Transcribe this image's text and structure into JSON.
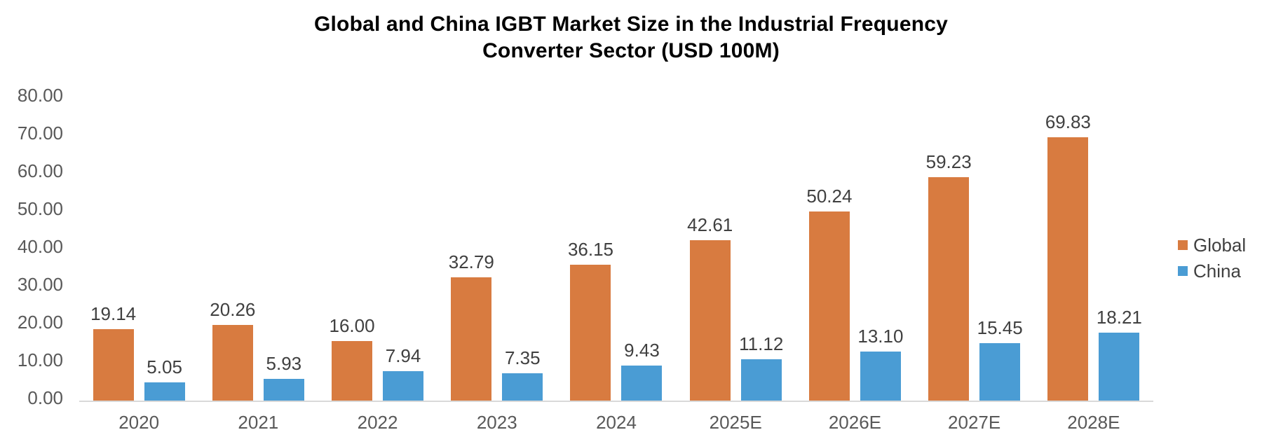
{
  "title": {
    "line1": "Global and China IGBT Market Size in the Industrial Frequency",
    "line2": "Converter Sector（USD 100M）"
  },
  "chart_data": {
    "type": "bar",
    "title": "Global and China IGBT Market Size in the Industrial Frequency Converter Sector（USD 100M）",
    "categories": [
      "2020",
      "2021",
      "2022",
      "2023",
      "2024",
      "2025E",
      "2026E",
      "2027E",
      "2028E"
    ],
    "series": [
      {
        "name": "Global",
        "color": "#d87b40",
        "values": [
          19.14,
          20.26,
          16.0,
          32.79,
          36.15,
          42.61,
          50.24,
          59.23,
          69.83
        ]
      },
      {
        "name": "China",
        "color": "#4a9cd4",
        "values": [
          5.05,
          5.93,
          7.94,
          7.35,
          9.43,
          11.12,
          13.1,
          15.45,
          18.21
        ]
      }
    ],
    "xlabel": "",
    "ylabel": "",
    "ylim": [
      0,
      80
    ],
    "yticks": [
      0,
      10,
      20,
      30,
      40,
      50,
      60,
      70,
      80
    ],
    "ytick_decimals": 2,
    "value_label_decimals": 2,
    "grid": false,
    "legend_position": "right",
    "value_labels": true
  },
  "colors": {
    "global_series": "#d87b40",
    "china_series": "#4a9cd4",
    "axis_line": "#d9d9d9",
    "axis_text": "#595959",
    "value_label_text": "#404040",
    "legend_text": "#404040",
    "title_text": "#000000",
    "background": "#ffffff"
  }
}
